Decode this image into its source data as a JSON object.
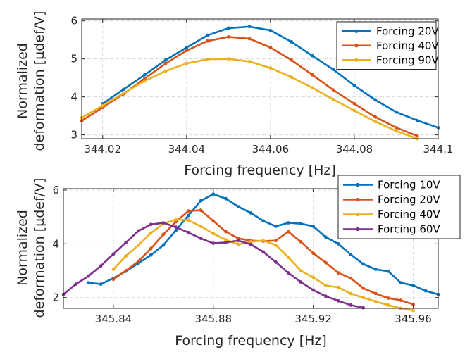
{
  "chart_data": [
    {
      "type": "line",
      "xlabel": "Forcing frequency [Hz]",
      "ylabel_lines": [
        "Normalized",
        "deformation [µdef/V]"
      ],
      "xlim": [
        344.015,
        344.1
      ],
      "ylim": [
        2.9,
        6.05
      ],
      "xticks": [
        344.02,
        344.04,
        344.06,
        344.08,
        344.1
      ],
      "xtick_labels": [
        "344.02",
        "344.04",
        "344.06",
        "344.08",
        "344.1"
      ],
      "yticks": [
        3,
        4,
        5,
        6
      ],
      "ytick_labels": [
        "3",
        "4",
        "5",
        "6"
      ],
      "grid": true,
      "legend_position": "top-right",
      "series": [
        {
          "name": "Forcing 20V",
          "color": "#0072BD",
          "x": [
            344.02,
            344.025,
            344.03,
            344.035,
            344.04,
            344.045,
            344.05,
            344.055,
            344.06,
            344.065,
            344.07,
            344.075,
            344.08,
            344.085,
            344.09,
            344.095,
            344.1
          ],
          "y": [
            3.82,
            4.2,
            4.58,
            4.97,
            5.3,
            5.62,
            5.81,
            5.85,
            5.75,
            5.45,
            5.08,
            4.72,
            4.3,
            3.92,
            3.6,
            3.38,
            3.19
          ]
        },
        {
          "name": "Forcing 40V",
          "color": "#D95319",
          "x": [
            344.015,
            344.02,
            344.025,
            344.03,
            344.035,
            344.04,
            344.045,
            344.05,
            344.055,
            344.06,
            344.065,
            344.07,
            344.075,
            344.08,
            344.085,
            344.09,
            344.095
          ],
          "y": [
            3.37,
            3.72,
            4.08,
            4.48,
            4.88,
            5.22,
            5.47,
            5.58,
            5.53,
            5.3,
            4.97,
            4.58,
            4.18,
            3.82,
            3.47,
            3.19,
            2.97
          ]
        },
        {
          "name": "Forcing 90V",
          "color": "#EDB120",
          "x": [
            344.015,
            344.02,
            344.025,
            344.03,
            344.035,
            344.04,
            344.045,
            344.05,
            344.055,
            344.06,
            344.065,
            344.07,
            344.075,
            344.08,
            344.085,
            344.09,
            344.095
          ],
          "y": [
            3.45,
            3.77,
            4.1,
            4.42,
            4.68,
            4.88,
            4.99,
            5.0,
            4.93,
            4.76,
            4.52,
            4.24,
            3.93,
            3.64,
            3.35,
            3.1,
            2.9
          ]
        }
      ]
    },
    {
      "type": "line",
      "xlabel": "Forcing frequency [Hz]",
      "ylabel_lines": [
        "Normalized",
        "deformation [µdef/V]"
      ],
      "xlim": [
        345.82,
        345.97
      ],
      "ylim": [
        1.6,
        6.05
      ],
      "xticks": [
        345.84,
        345.88,
        345.92,
        345.96
      ],
      "xtick_labels": [
        "345.84",
        "345.88",
        "345.92",
        "345.96"
      ],
      "yticks": [
        2,
        4,
        6
      ],
      "ytick_labels": [
        "2",
        "4",
        "6"
      ],
      "grid": true,
      "legend_position": "top-right",
      "series": [
        {
          "name": "Forcing 10V",
          "color": "#0072BD",
          "x": [
            345.83,
            345.835,
            345.84,
            345.845,
            345.85,
            345.855,
            345.86,
            345.865,
            345.87,
            345.875,
            345.88,
            345.885,
            345.89,
            345.895,
            345.9,
            345.905,
            345.91,
            345.915,
            345.92,
            345.925,
            345.93,
            345.935,
            345.94,
            345.945,
            345.95,
            345.955,
            345.96,
            345.965,
            345.97
          ],
          "y": [
            2.55,
            2.5,
            2.72,
            2.98,
            3.28,
            3.58,
            3.95,
            4.5,
            5.05,
            5.6,
            5.85,
            5.68,
            5.38,
            5.15,
            4.85,
            4.65,
            4.78,
            4.75,
            4.65,
            4.25,
            4.0,
            3.6,
            3.25,
            3.05,
            2.98,
            2.55,
            2.45,
            2.25,
            2.12
          ]
        },
        {
          "name": "Forcing 20V",
          "color": "#D95319",
          "x": [
            345.84,
            345.845,
            345.85,
            345.855,
            345.86,
            345.865,
            345.87,
            345.875,
            345.88,
            345.885,
            345.89,
            345.895,
            345.9,
            345.905,
            345.91,
            345.915,
            345.92,
            345.925,
            345.93,
            345.935,
            345.94,
            345.945,
            345.95,
            345.955,
            345.96
          ],
          "y": [
            2.68,
            3.0,
            3.35,
            3.82,
            4.35,
            4.82,
            5.22,
            5.25,
            4.85,
            4.45,
            4.2,
            4.12,
            4.1,
            4.12,
            4.45,
            4.08,
            3.65,
            3.3,
            2.92,
            2.72,
            2.35,
            2.15,
            1.98,
            1.9,
            1.75
          ]
        },
        {
          "name": "Forcing 40V",
          "color": "#EDB120",
          "x": [
            345.84,
            345.845,
            345.85,
            345.855,
            345.86,
            345.865,
            345.87,
            345.875,
            345.88,
            345.885,
            345.89,
            345.895,
            345.9,
            345.905,
            345.91,
            345.915,
            345.92,
            345.925,
            345.93,
            345.935,
            345.94,
            345.945,
            345.95,
            345.955,
            345.96
          ],
          "y": [
            3.05,
            3.55,
            3.95,
            4.4,
            4.75,
            4.9,
            4.88,
            4.65,
            4.38,
            4.15,
            3.98,
            4.08,
            4.12,
            3.95,
            3.5,
            3.0,
            2.75,
            2.45,
            2.38,
            2.15,
            2.0,
            1.85,
            1.72,
            1.6,
            1.52
          ]
        },
        {
          "name": "Forcing 60V",
          "color": "#7E2F8E",
          "x": [
            345.82,
            345.825,
            345.83,
            345.835,
            345.84,
            345.845,
            345.85,
            345.855,
            345.86,
            345.865,
            345.87,
            345.875,
            345.88,
            345.885,
            345.89,
            345.895,
            345.9,
            345.905,
            345.91,
            345.915,
            345.92,
            345.925,
            345.93,
            345.935,
            345.94
          ],
          "y": [
            2.12,
            2.5,
            2.8,
            3.18,
            3.62,
            4.05,
            4.48,
            4.72,
            4.78,
            4.62,
            4.42,
            4.2,
            4.02,
            4.05,
            4.12,
            3.98,
            3.7,
            3.32,
            2.92,
            2.58,
            2.28,
            2.05,
            1.88,
            1.72,
            1.62
          ]
        }
      ]
    }
  ]
}
